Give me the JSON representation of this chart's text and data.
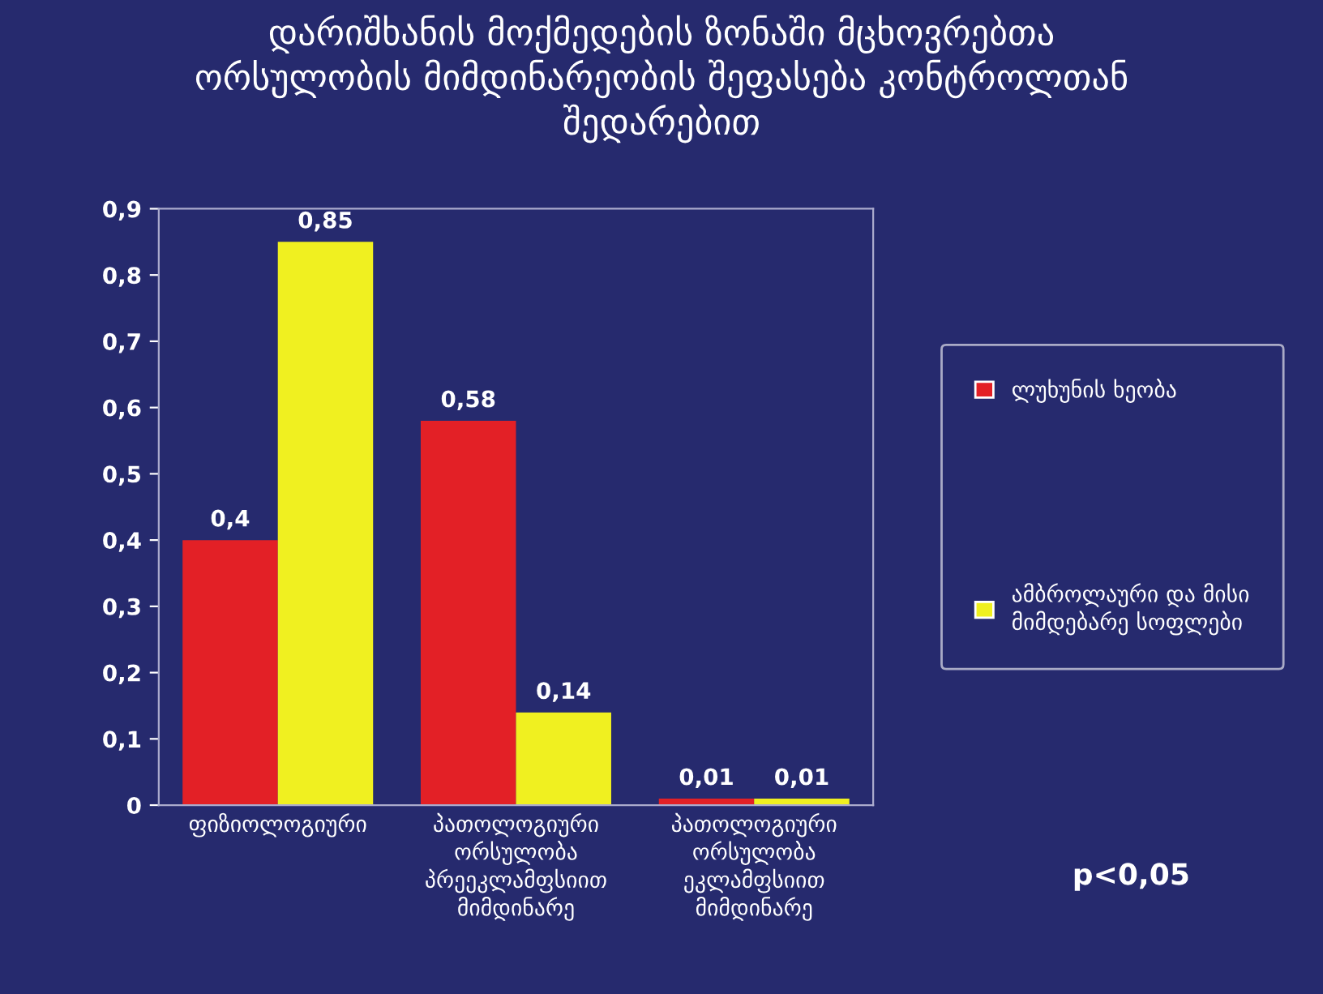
{
  "chart_data": {
    "type": "bar",
    "title": "დარიშხანის მოქმედების ზონაში მცხოვრებთა ორსულობის მიმდინარეობის შეფასება კონტროლთან შედარებით",
    "categories": [
      "ფიზიოლოგიური",
      "პათოლოგიური ორსულობა პრეეკლამფსიით მიმდინარე",
      "პათოლოგიური ორსულობა ეკლამფსიით მიმდინარე"
    ],
    "series": [
      {
        "name": "ლუხუნის ხეობა",
        "color": "#e32026",
        "values": [
          0.4,
          0.58,
          0.01
        ],
        "value_labels": [
          "0,4",
          "0,58",
          "0,01"
        ]
      },
      {
        "name": "ამბროლაური და მისი მიმდებარე სოფლები",
        "color": "#f0f020",
        "values": [
          0.85,
          0.14,
          0.01
        ],
        "value_labels": [
          "0,85",
          "0,14",
          "0,01"
        ]
      }
    ],
    "ylim": [
      0,
      0.9
    ],
    "yticks": [
      {
        "value": 0,
        "label": "0"
      },
      {
        "value": 0.1,
        "label": "0,1"
      },
      {
        "value": 0.2,
        "label": "0,2"
      },
      {
        "value": 0.3,
        "label": "0,3"
      },
      {
        "value": 0.4,
        "label": "0,4"
      },
      {
        "value": 0.5,
        "label": "0,5"
      },
      {
        "value": 0.6,
        "label": "0,6"
      },
      {
        "value": 0.7,
        "label": "0,7"
      },
      {
        "value": 0.8,
        "label": "0,8"
      },
      {
        "value": 0.9,
        "label": "0,9"
      }
    ],
    "grid": false,
    "legend": "right",
    "annotations": [
      "p<0,05"
    ]
  }
}
